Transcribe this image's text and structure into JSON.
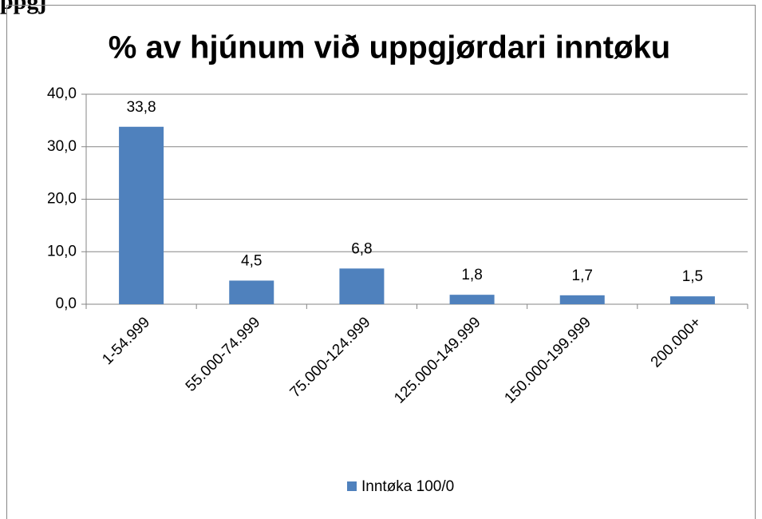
{
  "page_heading": "ppgj",
  "chart_data": {
    "type": "bar",
    "title": "% av hjúnum við uppgjørdari inntøku",
    "categories": [
      "1-54.999",
      "55.000-74.999",
      "75.000-124.999",
      "125.000-149.999",
      "150.000-199.999",
      "200.000+"
    ],
    "series": [
      {
        "name": "Inntøka 100/0",
        "color": "#4f81bd",
        "values": [
          33.8,
          4.5,
          6.8,
          1.8,
          1.7,
          1.5
        ],
        "value_labels": [
          "33,8",
          "4,5",
          "6,8",
          "1,8",
          "1,7",
          "1,5"
        ]
      }
    ],
    "ylim": [
      0,
      40
    ],
    "yticks": [
      {
        "value": 0,
        "label": "0,0"
      },
      {
        "value": 10,
        "label": "10,0"
      },
      {
        "value": 20,
        "label": "20,0"
      },
      {
        "value": 30,
        "label": "30,0"
      },
      {
        "value": 40,
        "label": "40,0"
      }
    ],
    "grid": true,
    "legend": "bottom"
  }
}
